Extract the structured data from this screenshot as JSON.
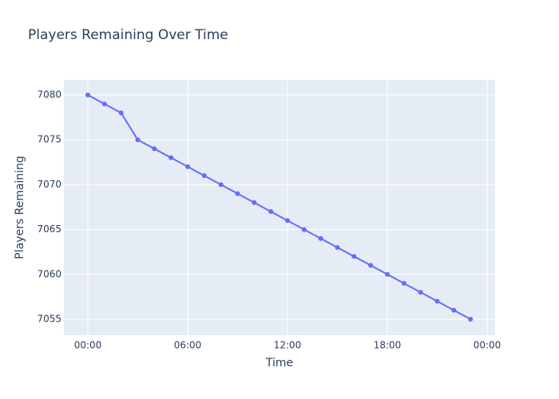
{
  "chart_data": {
    "type": "line",
    "title": "Players Remaining Over Time",
    "x_label": "Time",
    "y_label": "Players Remaining",
    "x": [
      0,
      1,
      2,
      3,
      4,
      5,
      6,
      7,
      8,
      9,
      10,
      11,
      12,
      13,
      14,
      15,
      16,
      17,
      18,
      19,
      20,
      21,
      22,
      23
    ],
    "series": [
      {
        "name": "Players Remaining",
        "color": "#636efa",
        "values": [
          7080,
          7079,
          7078,
          7075,
          7074,
          7073,
          7072,
          7071,
          7070,
          7069,
          7068,
          7067,
          7066,
          7065,
          7064,
          7063,
          7062,
          7061,
          7060,
          7059,
          7058,
          7057,
          7056,
          7055
        ]
      }
    ],
    "xlim": [
      -1.44,
      24.48
    ],
    "xticks": [
      {
        "value": 0,
        "label": "00:00"
      },
      {
        "value": 6,
        "label": "06:00"
      },
      {
        "value": 12,
        "label": "12:00"
      },
      {
        "value": 18,
        "label": "18:00"
      },
      {
        "value": 24,
        "label": "00:00"
      }
    ],
    "ylim": [
      7053.22,
      7081.69
    ],
    "yticks": [
      7055,
      7060,
      7065,
      7070,
      7075,
      7080
    ],
    "grid": true,
    "markers": true
  }
}
